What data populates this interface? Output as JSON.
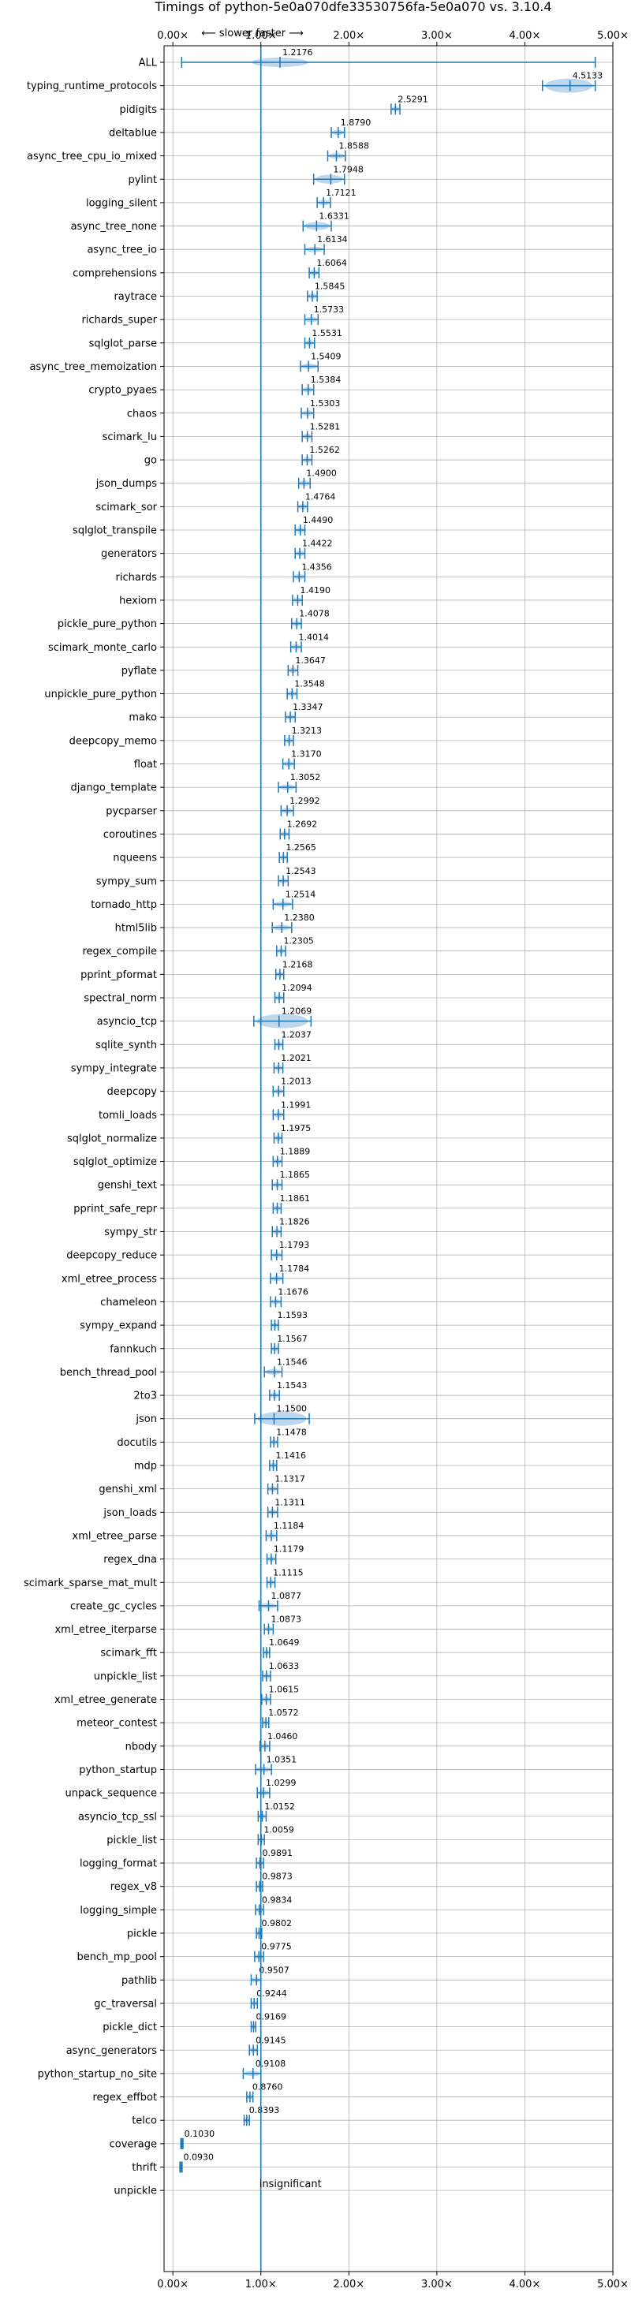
{
  "chart_data": {
    "type": "violin",
    "title": "Timings of python-5e0a070dfe33530756fa-5e0a070 vs. 3.10.4",
    "direction_label": "⟵ slower    faster ⟶",
    "xlim": [
      -0.1,
      5.0
    ],
    "x_ticks": [
      0.0,
      1.0,
      2.0,
      3.0,
      4.0,
      5.0
    ],
    "x_tick_labels": [
      "0.00×",
      "1.00×",
      "2.00×",
      "3.00×",
      "4.00×",
      "5.00×"
    ],
    "reference_x": 1.0,
    "grid": true,
    "colors": {
      "line": "#1f77b4",
      "fill": "#aecde8",
      "median": "#d62728",
      "grid": "#b0b0b0"
    },
    "insignificant_label": "insignificant",
    "benchmarks": [
      {
        "name": "ALL",
        "value": 1.2176,
        "lo": 0.1,
        "hi": 4.8,
        "label": "1.2176"
      },
      {
        "name": "typing_runtime_protocols",
        "value": 4.5133,
        "lo": 4.2,
        "hi": 4.8,
        "label": "4.5133"
      },
      {
        "name": "pidigits",
        "value": 2.5291,
        "lo": 2.48,
        "hi": 2.58,
        "label": "2.5291"
      },
      {
        "name": "deltablue",
        "value": 1.879,
        "lo": 1.8,
        "hi": 1.95,
        "label": "1.8790"
      },
      {
        "name": "async_tree_cpu_io_mixed",
        "value": 1.8588,
        "lo": 1.76,
        "hi": 1.96,
        "label": "1.8588"
      },
      {
        "name": "pylint",
        "value": 1.7948,
        "lo": 1.6,
        "hi": 1.95,
        "label": "1.7948"
      },
      {
        "name": "logging_silent",
        "value": 1.7121,
        "lo": 1.64,
        "hi": 1.79,
        "label": "1.7121"
      },
      {
        "name": "async_tree_none",
        "value": 1.6331,
        "lo": 1.48,
        "hi": 1.8,
        "label": "1.6331"
      },
      {
        "name": "async_tree_io",
        "value": 1.6134,
        "lo": 1.5,
        "hi": 1.72,
        "label": "1.6134"
      },
      {
        "name": "comprehensions",
        "value": 1.6064,
        "lo": 1.55,
        "hi": 1.66,
        "label": "1.6064"
      },
      {
        "name": "raytrace",
        "value": 1.5845,
        "lo": 1.53,
        "hi": 1.64,
        "label": "1.5845"
      },
      {
        "name": "richards_super",
        "value": 1.5733,
        "lo": 1.5,
        "hi": 1.65,
        "label": "1.5733"
      },
      {
        "name": "sqlglot_parse",
        "value": 1.5531,
        "lo": 1.5,
        "hi": 1.61,
        "label": "1.5531"
      },
      {
        "name": "async_tree_memoization",
        "value": 1.5409,
        "lo": 1.45,
        "hi": 1.65,
        "label": "1.5409"
      },
      {
        "name": "crypto_pyaes",
        "value": 1.5384,
        "lo": 1.47,
        "hi": 1.6,
        "label": "1.5384"
      },
      {
        "name": "chaos",
        "value": 1.5303,
        "lo": 1.46,
        "hi": 1.6,
        "label": "1.5303"
      },
      {
        "name": "scimark_lu",
        "value": 1.5281,
        "lo": 1.47,
        "hi": 1.58,
        "label": "1.5281"
      },
      {
        "name": "go",
        "value": 1.5262,
        "lo": 1.47,
        "hi": 1.58,
        "label": "1.5262"
      },
      {
        "name": "json_dumps",
        "value": 1.49,
        "lo": 1.43,
        "hi": 1.56,
        "label": "1.4900"
      },
      {
        "name": "scimark_sor",
        "value": 1.4764,
        "lo": 1.42,
        "hi": 1.53,
        "label": "1.4764"
      },
      {
        "name": "sqlglot_transpile",
        "value": 1.449,
        "lo": 1.39,
        "hi": 1.5,
        "label": "1.4490"
      },
      {
        "name": "generators",
        "value": 1.4422,
        "lo": 1.39,
        "hi": 1.5,
        "label": "1.4422"
      },
      {
        "name": "richards",
        "value": 1.4356,
        "lo": 1.37,
        "hi": 1.5,
        "label": "1.4356"
      },
      {
        "name": "hexiom",
        "value": 1.419,
        "lo": 1.36,
        "hi": 1.47,
        "label": "1.4190"
      },
      {
        "name": "pickle_pure_python",
        "value": 1.4078,
        "lo": 1.35,
        "hi": 1.46,
        "label": "1.4078"
      },
      {
        "name": "scimark_monte_carlo",
        "value": 1.4014,
        "lo": 1.34,
        "hi": 1.46,
        "label": "1.4014"
      },
      {
        "name": "pyflate",
        "value": 1.3647,
        "lo": 1.31,
        "hi": 1.42,
        "label": "1.3647"
      },
      {
        "name": "unpickle_pure_python",
        "value": 1.3548,
        "lo": 1.3,
        "hi": 1.41,
        "label": "1.3548"
      },
      {
        "name": "mako",
        "value": 1.3347,
        "lo": 1.28,
        "hi": 1.39,
        "label": "1.3347"
      },
      {
        "name": "deepcopy_memo",
        "value": 1.3213,
        "lo": 1.27,
        "hi": 1.37,
        "label": "1.3213"
      },
      {
        "name": "float",
        "value": 1.317,
        "lo": 1.25,
        "hi": 1.38,
        "label": "1.3170"
      },
      {
        "name": "django_template",
        "value": 1.3052,
        "lo": 1.2,
        "hi": 1.4,
        "label": "1.3052"
      },
      {
        "name": "pycparser",
        "value": 1.2992,
        "lo": 1.23,
        "hi": 1.37,
        "label": "1.2992"
      },
      {
        "name": "coroutines",
        "value": 1.2692,
        "lo": 1.22,
        "hi": 1.32,
        "label": "1.2692"
      },
      {
        "name": "nqueens",
        "value": 1.2565,
        "lo": 1.21,
        "hi": 1.3,
        "label": "1.2565"
      },
      {
        "name": "sympy_sum",
        "value": 1.2543,
        "lo": 1.2,
        "hi": 1.31,
        "label": "1.2543"
      },
      {
        "name": "tornado_http",
        "value": 1.2514,
        "lo": 1.14,
        "hi": 1.36,
        "label": "1.2514"
      },
      {
        "name": "html5lib",
        "value": 1.238,
        "lo": 1.13,
        "hi": 1.35,
        "label": "1.2380"
      },
      {
        "name": "regex_compile",
        "value": 1.2305,
        "lo": 1.18,
        "hi": 1.28,
        "label": "1.2305"
      },
      {
        "name": "pprint_pformat",
        "value": 1.2168,
        "lo": 1.17,
        "hi": 1.26,
        "label": "1.2168"
      },
      {
        "name": "spectral_norm",
        "value": 1.2094,
        "lo": 1.16,
        "hi": 1.26,
        "label": "1.2094"
      },
      {
        "name": "asyncio_tcp",
        "value": 1.2069,
        "lo": 0.92,
        "hi": 1.57,
        "label": "1.2069"
      },
      {
        "name": "sqlite_synth",
        "value": 1.2037,
        "lo": 1.16,
        "hi": 1.25,
        "label": "1.2037"
      },
      {
        "name": "sympy_integrate",
        "value": 1.2021,
        "lo": 1.15,
        "hi": 1.25,
        "label": "1.2021"
      },
      {
        "name": "deepcopy",
        "value": 1.2013,
        "lo": 1.14,
        "hi": 1.26,
        "label": "1.2013"
      },
      {
        "name": "tomli_loads",
        "value": 1.1991,
        "lo": 1.14,
        "hi": 1.26,
        "label": "1.1991"
      },
      {
        "name": "sqlglot_normalize",
        "value": 1.1975,
        "lo": 1.15,
        "hi": 1.24,
        "label": "1.1975"
      },
      {
        "name": "sqlglot_optimize",
        "value": 1.1889,
        "lo": 1.14,
        "hi": 1.24,
        "label": "1.1889"
      },
      {
        "name": "genshi_text",
        "value": 1.1865,
        "lo": 1.13,
        "hi": 1.24,
        "label": "1.1865"
      },
      {
        "name": "pprint_safe_repr",
        "value": 1.1861,
        "lo": 1.14,
        "hi": 1.23,
        "label": "1.1861"
      },
      {
        "name": "sympy_str",
        "value": 1.1826,
        "lo": 1.13,
        "hi": 1.23,
        "label": "1.1826"
      },
      {
        "name": "deepcopy_reduce",
        "value": 1.1793,
        "lo": 1.12,
        "hi": 1.24,
        "label": "1.1793"
      },
      {
        "name": "xml_etree_process",
        "value": 1.1784,
        "lo": 1.11,
        "hi": 1.25,
        "label": "1.1784"
      },
      {
        "name": "chameleon",
        "value": 1.1676,
        "lo": 1.11,
        "hi": 1.23,
        "label": "1.1676"
      },
      {
        "name": "sympy_expand",
        "value": 1.1593,
        "lo": 1.12,
        "hi": 1.2,
        "label": "1.1593"
      },
      {
        "name": "fannkuch",
        "value": 1.1567,
        "lo": 1.12,
        "hi": 1.2,
        "label": "1.1567"
      },
      {
        "name": "bench_thread_pool",
        "value": 1.1546,
        "lo": 1.04,
        "hi": 1.24,
        "label": "1.1546"
      },
      {
        "name": "2to3",
        "value": 1.1543,
        "lo": 1.1,
        "hi": 1.21,
        "label": "1.1543"
      },
      {
        "name": "json",
        "value": 1.15,
        "lo": 0.93,
        "hi": 1.55,
        "label": "1.1500"
      },
      {
        "name": "docutils",
        "value": 1.1478,
        "lo": 1.11,
        "hi": 1.19,
        "label": "1.1478"
      },
      {
        "name": "mdp",
        "value": 1.1416,
        "lo": 1.1,
        "hi": 1.18,
        "label": "1.1416"
      },
      {
        "name": "genshi_xml",
        "value": 1.1317,
        "lo": 1.08,
        "hi": 1.19,
        "label": "1.1317"
      },
      {
        "name": "json_loads",
        "value": 1.1311,
        "lo": 1.08,
        "hi": 1.19,
        "label": "1.1311"
      },
      {
        "name": "xml_etree_parse",
        "value": 1.1184,
        "lo": 1.06,
        "hi": 1.18,
        "label": "1.1184"
      },
      {
        "name": "regex_dna",
        "value": 1.1179,
        "lo": 1.07,
        "hi": 1.17,
        "label": "1.1179"
      },
      {
        "name": "scimark_sparse_mat_mult",
        "value": 1.1115,
        "lo": 1.07,
        "hi": 1.16,
        "label": "1.1115"
      },
      {
        "name": "create_gc_cycles",
        "value": 1.0877,
        "lo": 0.98,
        "hi": 1.19,
        "label": "1.0877"
      },
      {
        "name": "xml_etree_iterparse",
        "value": 1.0873,
        "lo": 1.04,
        "hi": 1.14,
        "label": "1.0873"
      },
      {
        "name": "scimark_fft",
        "value": 1.0649,
        "lo": 1.03,
        "hi": 1.1,
        "label": "1.0649"
      },
      {
        "name": "unpickle_list",
        "value": 1.0633,
        "lo": 1.02,
        "hi": 1.11,
        "label": "1.0633"
      },
      {
        "name": "xml_etree_generate",
        "value": 1.0615,
        "lo": 1.01,
        "hi": 1.11,
        "label": "1.0615"
      },
      {
        "name": "meteor_contest",
        "value": 1.0572,
        "lo": 1.02,
        "hi": 1.09,
        "label": "1.0572"
      },
      {
        "name": "nbody",
        "value": 1.046,
        "lo": 0.99,
        "hi": 1.1,
        "label": "1.0460"
      },
      {
        "name": "python_startup",
        "value": 1.0351,
        "lo": 0.94,
        "hi": 1.12,
        "label": "1.0351"
      },
      {
        "name": "unpack_sequence",
        "value": 1.0299,
        "lo": 0.96,
        "hi": 1.1,
        "label": "1.0299"
      },
      {
        "name": "asyncio_tcp_ssl",
        "value": 1.0152,
        "lo": 0.97,
        "hi": 1.06,
        "label": "1.0152"
      },
      {
        "name": "pickle_list",
        "value": 1.0059,
        "lo": 0.97,
        "hi": 1.04,
        "label": "1.0059"
      },
      {
        "name": "logging_format",
        "value": 0.9891,
        "lo": 0.95,
        "hi": 1.03,
        "label": "0.9891"
      },
      {
        "name": "regex_v8",
        "value": 0.9873,
        "lo": 0.95,
        "hi": 1.02,
        "label": "0.9873"
      },
      {
        "name": "logging_simple",
        "value": 0.9834,
        "lo": 0.94,
        "hi": 1.03,
        "label": "0.9834"
      },
      {
        "name": "pickle",
        "value": 0.9802,
        "lo": 0.95,
        "hi": 1.01,
        "label": "0.9802"
      },
      {
        "name": "bench_mp_pool",
        "value": 0.9775,
        "lo": 0.93,
        "hi": 1.03,
        "label": "0.9775"
      },
      {
        "name": "pathlib",
        "value": 0.9507,
        "lo": 0.89,
        "hi": 1.0,
        "label": "0.9507"
      },
      {
        "name": "gc_traversal",
        "value": 0.9244,
        "lo": 0.89,
        "hi": 0.96,
        "label": "0.9244"
      },
      {
        "name": "pickle_dict",
        "value": 0.9169,
        "lo": 0.89,
        "hi": 0.94,
        "label": "0.9169"
      },
      {
        "name": "async_generators",
        "value": 0.9145,
        "lo": 0.87,
        "hi": 0.96,
        "label": "0.9145"
      },
      {
        "name": "python_startup_no_site",
        "value": 0.9108,
        "lo": 0.8,
        "hi": 1.0,
        "label": "0.9108"
      },
      {
        "name": "regex_effbot",
        "value": 0.876,
        "lo": 0.84,
        "hi": 0.91,
        "label": "0.8760"
      },
      {
        "name": "telco",
        "value": 0.8393,
        "lo": 0.81,
        "hi": 0.87,
        "label": "0.8393"
      },
      {
        "name": "coverage",
        "value": 0.103,
        "lo": 0.09,
        "hi": 0.115,
        "label": "0.1030"
      },
      {
        "name": "thrift",
        "value": 0.093,
        "lo": 0.08,
        "hi": 0.105,
        "label": "0.0930"
      },
      {
        "name": "unpickle",
        "value": null,
        "lo": null,
        "hi": null,
        "label": ""
      }
    ]
  }
}
